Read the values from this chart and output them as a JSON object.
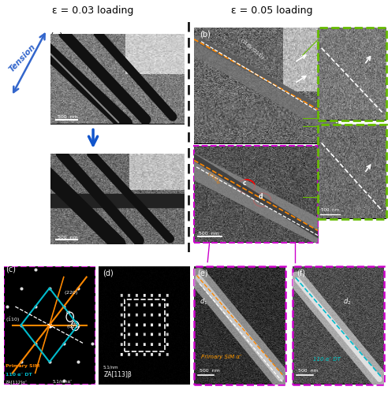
{
  "fig_width": 4.92,
  "fig_height": 5.0,
  "dpi": 100,
  "bg_color": "#ffffff",
  "title_left": "ε = 0.03 loading",
  "title_right": "ε = 0.05 loading",
  "title_fontsize": 9,
  "tension_text": "Tension",
  "tension_color": "#3366cc",
  "arrow_color": "#3366cc",
  "orange_line_color": "#ff8800",
  "green_box_color": "#66bb00",
  "magenta_box_color": "#cc00cc",
  "label_e_text": "Primary SIM α″",
  "label_f_text": "110 α″ DT",
  "label_e_color": "#ff9900",
  "label_f_color": "#00cccc",
  "primary_sim_color": "#ff8800",
  "dt_color": "#00bbcc"
}
